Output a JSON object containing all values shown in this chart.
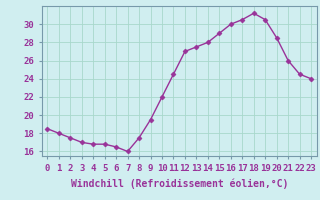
{
  "x": [
    0,
    1,
    2,
    3,
    4,
    5,
    6,
    7,
    8,
    9,
    10,
    11,
    12,
    13,
    14,
    15,
    16,
    17,
    18,
    19,
    20,
    21,
    22,
    23
  ],
  "y": [
    18.5,
    18.0,
    17.5,
    17.0,
    16.8,
    16.8,
    16.5,
    16.0,
    17.5,
    19.5,
    22.0,
    24.5,
    27.0,
    27.5,
    28.0,
    29.0,
    30.0,
    30.5,
    31.2,
    30.5,
    28.5,
    26.0,
    24.5,
    24.0
  ],
  "line_color": "#993399",
  "marker": "D",
  "marker_size": 2.5,
  "bg_color": "#d0eef0",
  "plot_bg_color": "#d0eef0",
  "grid_color": "#a8d8cc",
  "xlabel": "Windchill (Refroidissement éolien,°C)",
  "ylabel": "",
  "ylim": [
    15.5,
    32.0
  ],
  "xlim": [
    -0.5,
    23.5
  ],
  "yticks": [
    16,
    18,
    20,
    22,
    24,
    26,
    28,
    30
  ],
  "xticks": [
    0,
    1,
    2,
    3,
    4,
    5,
    6,
    7,
    8,
    9,
    10,
    11,
    12,
    13,
    14,
    15,
    16,
    17,
    18,
    19,
    20,
    21,
    22,
    23
  ],
  "xlabel_fontsize": 7,
  "tick_fontsize": 6.5,
  "line_width": 1.0
}
